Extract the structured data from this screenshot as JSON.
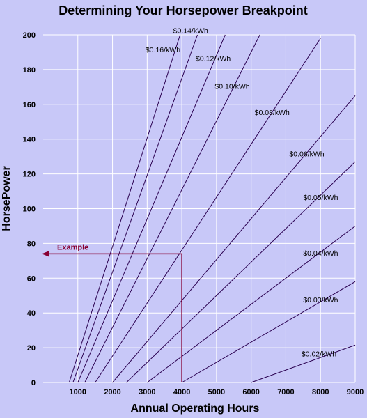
{
  "chart_data": {
    "type": "line",
    "title": "Determining Your Horsepower Breakpoint",
    "xlabel": "Annual Operating Hours",
    "ylabel": "HorsePower",
    "xlim": [
      0,
      9000
    ],
    "ylim": [
      0,
      200
    ],
    "x_ticks": [
      "1000",
      "2000",
      "3000",
      "4000",
      "5000",
      "6000",
      "7000",
      "8000",
      "9000"
    ],
    "y_ticks": [
      "0",
      "20",
      "40",
      "60",
      "80",
      "100",
      "120",
      "140",
      "160",
      "180",
      "200"
    ],
    "grid": true,
    "colors": {
      "background": "#c8c8f8",
      "plot_background": "#c8c8f8",
      "grid": "#ffffff",
      "series": "#2a0050",
      "example": "#880033"
    },
    "series": [
      {
        "name": "$0.02/kWh",
        "x": [
          6000,
          9000
        ],
        "y": [
          0,
          21.5
        ]
      },
      {
        "name": "$0.03/kWh",
        "x": [
          4000,
          9000
        ],
        "y": [
          0,
          58
        ]
      },
      {
        "name": "$0.04/kWh",
        "x": [
          3000,
          9000
        ],
        "y": [
          0,
          90
        ]
      },
      {
        "name": "$0.05/kWh",
        "x": [
          2400,
          9000
        ],
        "y": [
          0,
          127
        ]
      },
      {
        "name": "$0.06/kWh",
        "x": [
          2000,
          9000
        ],
        "y": [
          0,
          165
        ]
      },
      {
        "name": "$0.08/kWh",
        "x": [
          1500,
          8000
        ],
        "y": [
          0,
          198
        ]
      },
      {
        "name": "$0.10/kWh",
        "x": [
          1200,
          6250
        ],
        "y": [
          0,
          200
        ]
      },
      {
        "name": "$0.12/kWh",
        "x": [
          1000,
          5250
        ],
        "y": [
          0,
          200
        ]
      },
      {
        "name": "$0.14/kWh",
        "x": [
          860,
          4450
        ],
        "y": [
          0,
          200
        ]
      },
      {
        "name": "$0.16/kWh",
        "x": [
          750,
          3950
        ],
        "y": [
          0,
          200
        ]
      }
    ],
    "labels": [
      {
        "text": "$0.02/kWh",
        "x": 7450,
        "y": 15
      },
      {
        "text": "$0.03/kWh",
        "x": 7500,
        "y": 46
      },
      {
        "text": "$0.04/kWh",
        "x": 7500,
        "y": 73
      },
      {
        "text": "$0.05/kWh",
        "x": 7500,
        "y": 105
      },
      {
        "text": "$0.06/kWh",
        "x": 7100,
        "y": 130
      },
      {
        "text": "$0.08/kWh",
        "x": 6100,
        "y": 154
      },
      {
        "text": "$0.10/kWh",
        "x": 4950,
        "y": 169
      },
      {
        "text": "$0.12/kWh",
        "x": 4400,
        "y": 185
      },
      {
        "text": "$0.16/kWh",
        "x": 2950,
        "y": 190
      },
      {
        "text": "$0.14/kWh",
        "x": 3750,
        "y": 201
      }
    ],
    "example": {
      "label": "Example",
      "x": 4000,
      "y": 74
    }
  }
}
